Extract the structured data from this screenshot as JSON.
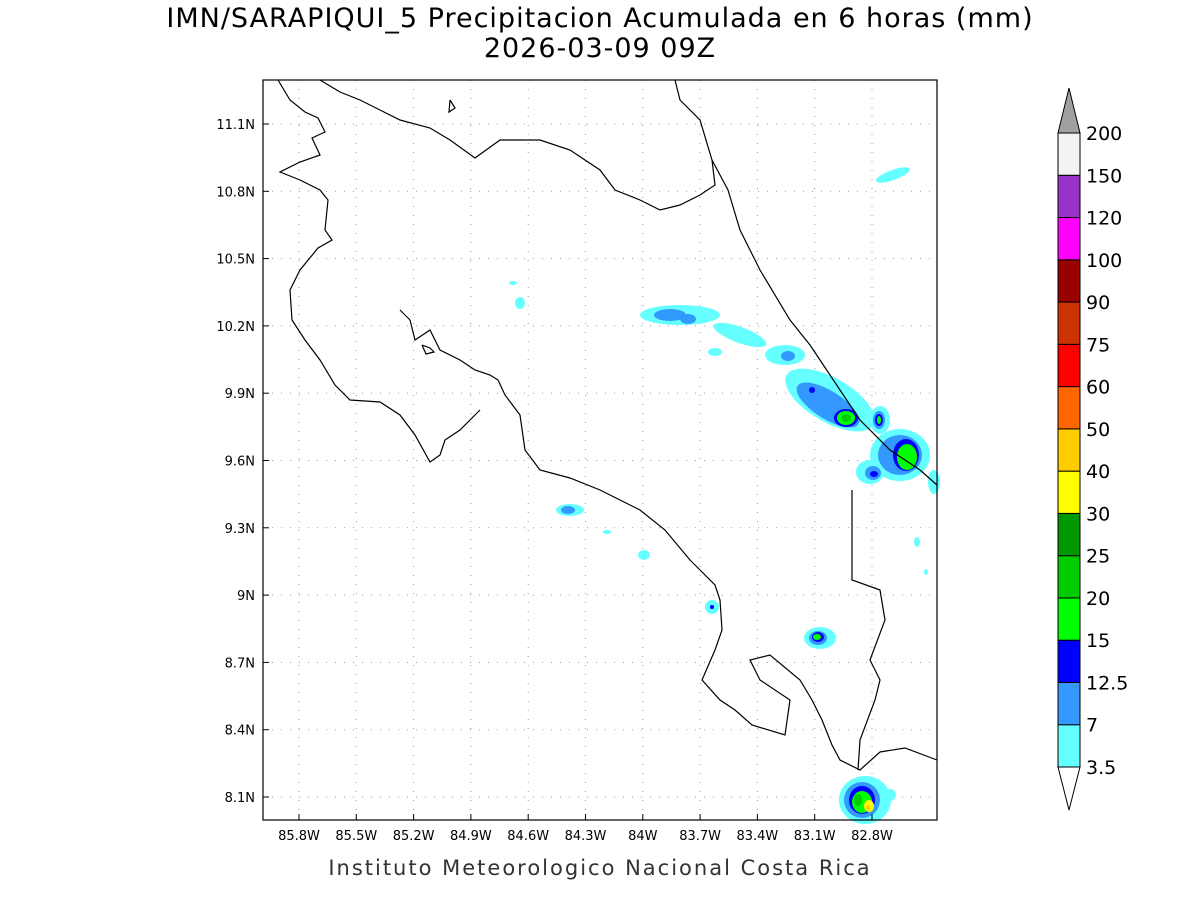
{
  "title": {
    "line1": "IMN/SARAPIQUI_5 Precipitacion Acumulada en 6 horas (mm)",
    "line2": "2026-03-09 09Z"
  },
  "footer": "Instituto Meteorologico Nacional Costa Rica",
  "map": {
    "lon_range": [
      -86.0,
      -82.46
    ],
    "lat_range": [
      8.0,
      11.3
    ],
    "lon_ticks": [
      "85.8W",
      "85.5W",
      "85.2W",
      "84.9W",
      "84.6W",
      "84.3W",
      "84W",
      "83.7W",
      "83.4W",
      "83.1W",
      "82.8W"
    ],
    "lat_ticks": [
      "11.1N",
      "10.8N",
      "10.5N",
      "10.2N",
      "9.9N",
      "9.6N",
      "9.3N",
      "9N",
      "8.7N",
      "8.4N",
      "8.1N"
    ]
  },
  "colorbar": {
    "levels": [
      "3.5",
      "7",
      "12.5",
      "15",
      "20",
      "25",
      "30",
      "40",
      "50",
      "60",
      "75",
      "90",
      "100",
      "120",
      "150",
      "200"
    ],
    "colors": [
      "#66ffff",
      "#3399ff",
      "#0000ff",
      "#00ff00",
      "#00cc00",
      "#009900",
      "#ffff00",
      "#ffcc00",
      "#ff6600",
      "#ff0000",
      "#cc3300",
      "#990000",
      "#ff00ff",
      "#9933cc",
      "#f2f2f2"
    ],
    "over_color": "#a0a0a0",
    "under_color": "#ffffff"
  }
}
